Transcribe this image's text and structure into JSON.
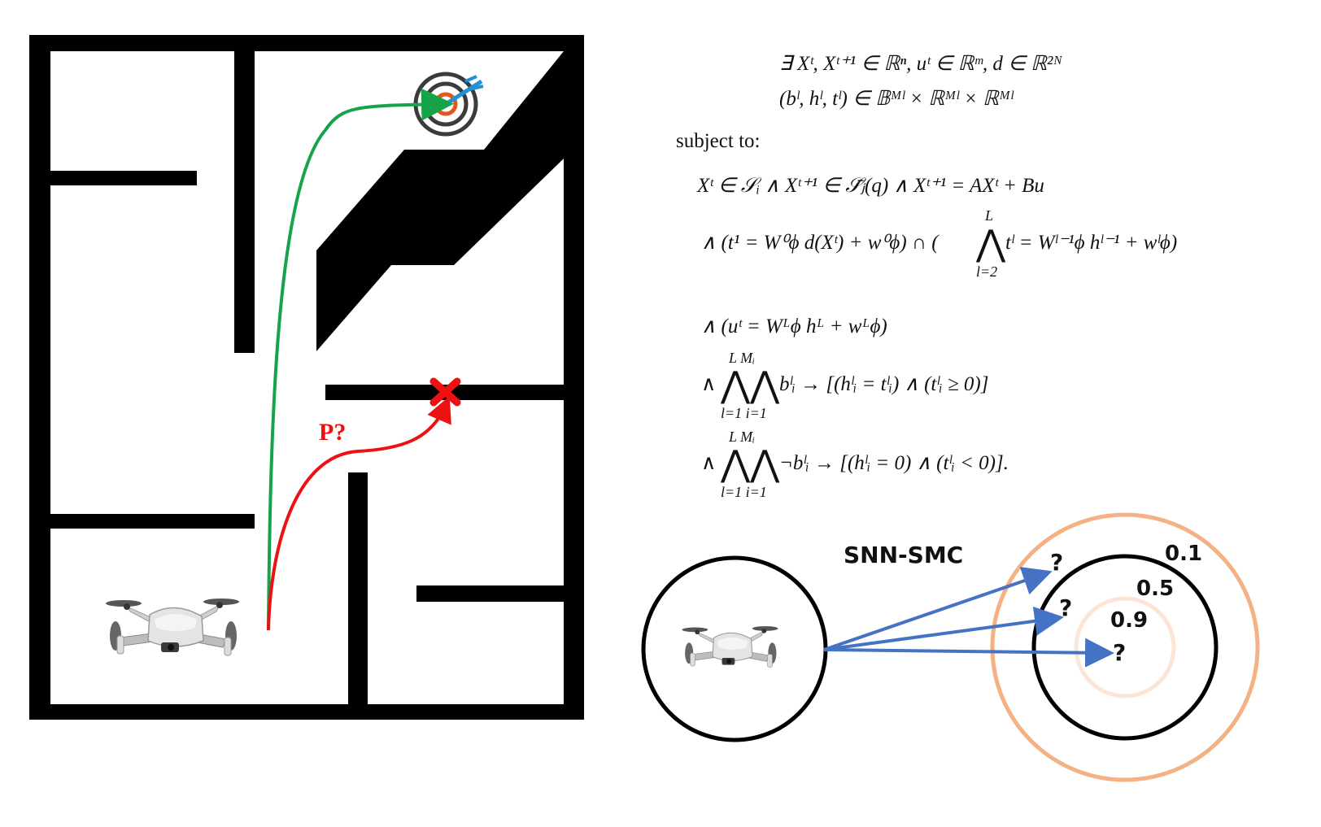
{
  "maze": {
    "red_path_label": "P?"
  },
  "formulation": {
    "line1": "∃ Xᵗ, Xᵗ⁺¹ ∈ ℝⁿ, uᵗ ∈ ℝᵐ, d ∈ ℝ²ᴺ",
    "line2": "(bˡ, hˡ, tˡ) ∈ 𝔹ᴹˡ × ℝᴹˡ × ℝᴹˡ",
    "subject_to": "subject to:",
    "c1": "Xᵗ ∈ 𝒮ᵢ ∧ Xᵗ⁺¹ ∈ 𝒮̄ⱼ(q) ∧ Xᵗ⁺¹ = AXᵗ + Bu",
    "c2_left": "∧ (t¹ = W⁰ϕ d(Xᵗ) + w⁰ϕ) ∩ (",
    "c2_big": "⋀",
    "c2_top": "L",
    "c2_bottom": "l=2",
    "c2_right": "tˡ = Wˡ⁻¹ϕ hˡ⁻¹ + wˡϕ)",
    "c3": "∧ (uᵗ = Wᴸϕ hᴸ + wᴸϕ)",
    "c4_big": "⋀⋀",
    "c4_top": "L  Mᵢ",
    "c4_bottom": "l=1 i=1",
    "c4_right": "bˡᵢ → [(hˡᵢ = tˡᵢ) ∧ (tˡᵢ ≥ 0)]",
    "c5_right": "¬bˡᵢ → [(hˡᵢ = 0) ∧ (tˡᵢ < 0)].",
    "and_symbol": "∧"
  },
  "smc": {
    "title": "SNN-SMC",
    "level_outer": "0.1",
    "level_mid": "0.5",
    "level_inner": "0.9",
    "question": "?",
    "colors": {
      "arrow": "#4472c4",
      "ring": "#f4b183",
      "ring_inner": "#fbe5d6"
    }
  },
  "colors": {
    "success_path": "#17a34a",
    "fail_path": "#ee1111",
    "wall": "#000000"
  }
}
